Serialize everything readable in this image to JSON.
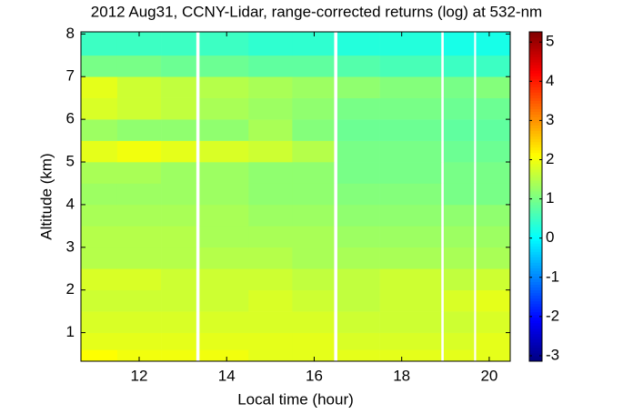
{
  "chart_data": {
    "type": "heatmap",
    "title": "2012 Aug31, CCNY-Lidar, range-corrected returns (log) at 532-nm",
    "x_label": "Local time (hour)",
    "y_label": "Altitude (km)",
    "colormap": "jet",
    "xlim": [
      10.67,
      20.48
    ],
    "ylim": [
      0.33,
      8.05
    ],
    "xticks": [
      12,
      14,
      16,
      18,
      20
    ],
    "yticks": [
      1,
      2,
      3,
      4,
      5,
      6,
      7,
      8
    ],
    "clim": [
      -3.14,
      5.26
    ],
    "cticks": [
      -3,
      -2,
      -1,
      0,
      1,
      2,
      3,
      4,
      5
    ],
    "x_edges": [
      10.67,
      11.5,
      12.5,
      13.3,
      13.38,
      14.5,
      15.5,
      16.45,
      16.53,
      17.5,
      18.9,
      18.96,
      19.65,
      19.7,
      20.48
    ],
    "y_edges": [
      0.33,
      0.6,
      1,
      1.5,
      2,
      2.5,
      3,
      3.5,
      4,
      4.5,
      5,
      5.5,
      6,
      6.5,
      7,
      7.5,
      8.05
    ],
    "z": [
      [
        2.1,
        2.0,
        2.0,
        null,
        2.0,
        1.9,
        1.9,
        null,
        1.9,
        1.9,
        null,
        1.9,
        null,
        1.9
      ],
      [
        1.9,
        1.9,
        1.9,
        null,
        1.9,
        1.9,
        1.9,
        null,
        1.8,
        1.8,
        null,
        1.8,
        null,
        1.9
      ],
      [
        1.8,
        1.8,
        1.8,
        null,
        1.8,
        1.8,
        1.8,
        null,
        1.7,
        1.7,
        null,
        1.7,
        null,
        1.8
      ],
      [
        1.7,
        1.7,
        1.7,
        null,
        1.7,
        1.8,
        1.7,
        null,
        1.6,
        1.7,
        null,
        1.8,
        null,
        1.9
      ],
      [
        1.8,
        1.8,
        1.7,
        null,
        1.7,
        1.7,
        1.6,
        null,
        1.6,
        1.7,
        null,
        1.6,
        null,
        1.7
      ],
      [
        1.5,
        1.5,
        1.5,
        null,
        1.5,
        1.5,
        1.4,
        null,
        1.4,
        1.4,
        null,
        1.4,
        null,
        1.4
      ],
      [
        1.5,
        1.5,
        1.5,
        null,
        1.4,
        1.4,
        1.4,
        null,
        1.3,
        1.3,
        null,
        1.3,
        null,
        1.3
      ],
      [
        1.4,
        1.4,
        1.4,
        null,
        1.4,
        1.3,
        1.3,
        null,
        1.2,
        1.2,
        null,
        1.2,
        null,
        1.2
      ],
      [
        1.3,
        1.3,
        1.3,
        null,
        1.3,
        1.2,
        1.2,
        null,
        1.1,
        1.1,
        null,
        1.0,
        null,
        1.0
      ],
      [
        1.4,
        1.4,
        1.3,
        null,
        1.3,
        1.2,
        1.2,
        null,
        1.0,
        1.0,
        null,
        1.0,
        null,
        1.0
      ],
      [
        1.9,
        2.0,
        1.9,
        null,
        1.8,
        1.7,
        1.5,
        null,
        1.0,
        1.0,
        null,
        0.9,
        null,
        0.9
      ],
      [
        1.3,
        1.2,
        1.2,
        null,
        1.2,
        1.4,
        1.1,
        null,
        0.9,
        0.9,
        null,
        0.8,
        null,
        0.8
      ],
      [
        1.8,
        1.7,
        1.6,
        null,
        1.4,
        1.3,
        1.2,
        null,
        1.0,
        1.0,
        null,
        0.9,
        null,
        0.9
      ],
      [
        1.9,
        1.7,
        1.6,
        null,
        1.5,
        1.4,
        1.3,
        null,
        1.2,
        1.1,
        null,
        1.0,
        null,
        1.1
      ],
      [
        1.0,
        1.0,
        0.9,
        null,
        0.9,
        0.8,
        0.8,
        null,
        0.7,
        0.6,
        null,
        0.5,
        null,
        0.5
      ],
      [
        0.5,
        0.5,
        0.5,
        null,
        0.5,
        0.4,
        0.4,
        null,
        0.3,
        0.3,
        null,
        0.2,
        null,
        0.2
      ]
    ]
  }
}
